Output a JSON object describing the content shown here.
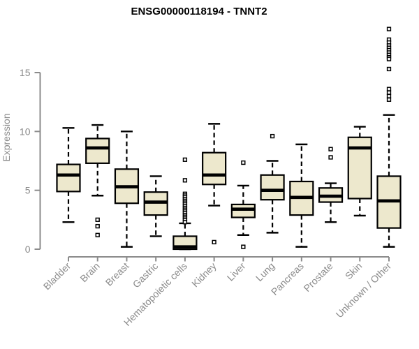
{
  "chart_data": {
    "type": "boxplot",
    "title": "ENSG00000118194 - TNNT2",
    "ylabel": "Expression",
    "xlabel": "",
    "yticks": [
      0,
      5,
      10,
      15
    ],
    "ylim": [
      0,
      19.2
    ],
    "grid": false,
    "legend": "none",
    "colors": {
      "box_fill": "#EDE8CD",
      "box_stroke": "#000000",
      "median": "#000000",
      "whisker": "#000000",
      "outlier_stroke": "#000000",
      "outlier_fill": "#FFFFFF",
      "axis": "#8B8B8B",
      "label_text": "#8B8B8B",
      "title_text": "#000000",
      "background": "#FFFFFF"
    },
    "categories": [
      "Bladder",
      "Brain",
      "Breast",
      "Gastric",
      "Hematopoietic cells",
      "Kidney",
      "Liver",
      "Lung",
      "Pancreas",
      "Prostate",
      "Skin",
      "Unknown / Other"
    ],
    "boxes": [
      {
        "category": "Bladder",
        "whisker_low": 2.3,
        "q1": 4.9,
        "median": 6.3,
        "q3": 7.2,
        "whisker_high": 10.3,
        "outliers": []
      },
      {
        "category": "Brain",
        "whisker_low": 4.55,
        "q1": 7.3,
        "median": 8.6,
        "q3": 9.4,
        "whisker_high": 10.55,
        "outliers": [
          2.5,
          1.95,
          1.2
        ]
      },
      {
        "category": "Breast",
        "whisker_low": 0.2,
        "q1": 3.9,
        "median": 5.3,
        "q3": 6.8,
        "whisker_high": 10.0,
        "outliers": []
      },
      {
        "category": "Gastric",
        "whisker_low": 1.1,
        "q1": 2.9,
        "median": 4.0,
        "q3": 4.85,
        "whisker_high": 6.2,
        "outliers": []
      },
      {
        "category": "Hematopoietic cells",
        "whisker_low": 0.0,
        "q1": 0.0,
        "median": 0.2,
        "q3": 1.1,
        "whisker_high": 2.2,
        "outliers": [
          7.6,
          5.85,
          4.7,
          4.55,
          4.4,
          4.25,
          4.1,
          3.95,
          3.8,
          3.65,
          3.5,
          3.35,
          3.2,
          3.05,
          2.9,
          2.75,
          2.6,
          2.45,
          2.3
        ]
      },
      {
        "category": "Kidney",
        "whisker_low": 3.7,
        "q1": 5.5,
        "median": 6.3,
        "q3": 8.2,
        "whisker_high": 10.65,
        "outliers": [
          0.6
        ]
      },
      {
        "category": "Liver",
        "whisker_low": 1.2,
        "q1": 2.7,
        "median": 3.4,
        "q3": 3.8,
        "whisker_high": 5.4,
        "outliers": [
          7.35,
          0.2
        ]
      },
      {
        "category": "Lung",
        "whisker_low": 1.4,
        "q1": 4.2,
        "median": 5.0,
        "q3": 6.3,
        "whisker_high": 7.5,
        "outliers": [
          9.6
        ]
      },
      {
        "category": "Pancreas",
        "whisker_low": 0.2,
        "q1": 2.9,
        "median": 4.4,
        "q3": 5.75,
        "whisker_high": 8.9,
        "outliers": []
      },
      {
        "category": "Prostate",
        "whisker_low": 2.3,
        "q1": 4.0,
        "median": 4.5,
        "q3": 5.2,
        "whisker_high": 5.6,
        "outliers": [
          8.5,
          7.8
        ]
      },
      {
        "category": "Skin",
        "whisker_low": 2.85,
        "q1": 4.3,
        "median": 8.6,
        "q3": 9.5,
        "whisker_high": 10.4,
        "outliers": []
      },
      {
        "category": "Unknown / Other",
        "whisker_low": 0.2,
        "q1": 1.8,
        "median": 4.1,
        "q3": 6.2,
        "whisker_high": 11.4,
        "outliers": [
          18.7,
          17.8,
          17.55,
          17.3,
          17.1,
          16.9,
          16.7,
          16.5,
          16.3,
          16.15,
          15.3,
          13.6,
          13.3,
          13.0,
          12.7
        ]
      }
    ]
  }
}
